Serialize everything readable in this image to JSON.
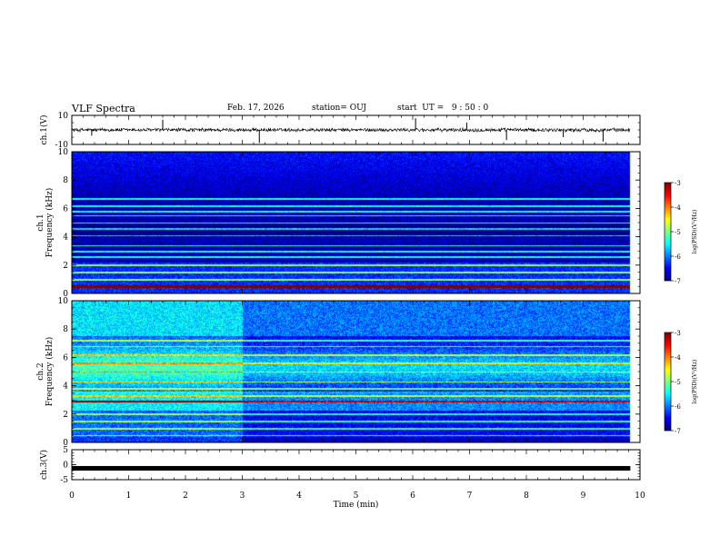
{
  "header": {
    "title": "VLF Spectra",
    "date": "Feb. 17, 2026",
    "station": "station= OUJ",
    "start": "start  UT =   9 : 50 : 0"
  },
  "chart_data": {
    "type": "heatmap",
    "title": "VLF Spectra",
    "xlabel": "Time  (min)",
    "xlim": [
      0,
      10
    ],
    "xticks": [
      "0",
      "1",
      "2",
      "3",
      "4",
      "5",
      "6",
      "7",
      "8",
      "9",
      "10"
    ],
    "panels": [
      {
        "id": "ch1-waveform",
        "type": "line",
        "ylabel": "ch.1(V)",
        "ylim": [
          -10,
          10
        ],
        "yticks": [
          "10",
          "-10"
        ],
        "baseline": 0,
        "noise_amplitude": 1.5,
        "data_end_min": 9.83,
        "spikes": [
          {
            "t": 0.35,
            "v": -4
          },
          {
            "t": 1.6,
            "v": 7
          },
          {
            "t": 3.3,
            "v": -9
          },
          {
            "t": 6.05,
            "v": 8
          },
          {
            "t": 6.95,
            "v": 5
          },
          {
            "t": 7.65,
            "v": -7
          },
          {
            "t": 8.65,
            "v": -5
          },
          {
            "t": 9.35,
            "v": -8
          }
        ]
      },
      {
        "id": "ch1-spectrogram",
        "type": "heatmap",
        "channel_label": "ch.1",
        "ylabel": "Frequency  (kHz)",
        "ylim": [
          0,
          10
        ],
        "yticks": [
          "0",
          "2",
          "4",
          "6",
          "8",
          "10"
        ],
        "colorbar_label": "log(PSD)(V²/Hz)",
        "colorbar_ticks": [
          "-3",
          "-4",
          "-5",
          "-6",
          "-7"
        ],
        "clim": [
          -7,
          -3
        ],
        "lines_khz": [
          0.5,
          1.0,
          1.5,
          2.0,
          2.6,
          3.0,
          3.4,
          4.1,
          4.6,
          5.0,
          5.5,
          5.8,
          6.2,
          6.7
        ],
        "hot_line_khz": 0.5,
        "notes": "broadband background about -6.5; vertical sferics from 6 to 10 kHz"
      },
      {
        "id": "ch2-spectrogram",
        "type": "heatmap",
        "channel_label": "ch.2",
        "ylabel": "Frequency  (kHz)",
        "ylim": [
          0,
          10
        ],
        "yticks": [
          "0",
          "2",
          "4",
          "6",
          "8",
          "10"
        ],
        "colorbar_label": "log(PSD)(V²/Hz)",
        "colorbar_ticks": [
          "-3",
          "-4",
          "-5",
          "-6",
          "-7"
        ],
        "clim": [
          -7,
          -3
        ],
        "lines_khz": [
          0.5,
          1.0,
          1.5,
          2.0,
          2.9,
          3.3,
          3.8,
          4.3,
          5.0,
          5.6,
          6.2,
          6.8,
          7.2
        ],
        "hot_line_khz": 2.9,
        "notes": "enhanced emission before 3 min; strong sferics near the top"
      },
      {
        "id": "ch3-waveform",
        "type": "line",
        "ylabel": "ch.3(V)",
        "ylim": [
          -5,
          5
        ],
        "yticks": [
          "5",
          "0",
          "-5"
        ],
        "baseline": -1.2,
        "data_end_min": 9.83
      }
    ]
  },
  "colors": {
    "axis": "#000000",
    "waveform": "#000000",
    "background_low": "#00008f",
    "colormap": [
      "#00007f",
      "#0000ff",
      "#00a0ff",
      "#00ffff",
      "#80ff80",
      "#ffff00",
      "#ff8000",
      "#ff0000",
      "#ffffff"
    ]
  }
}
